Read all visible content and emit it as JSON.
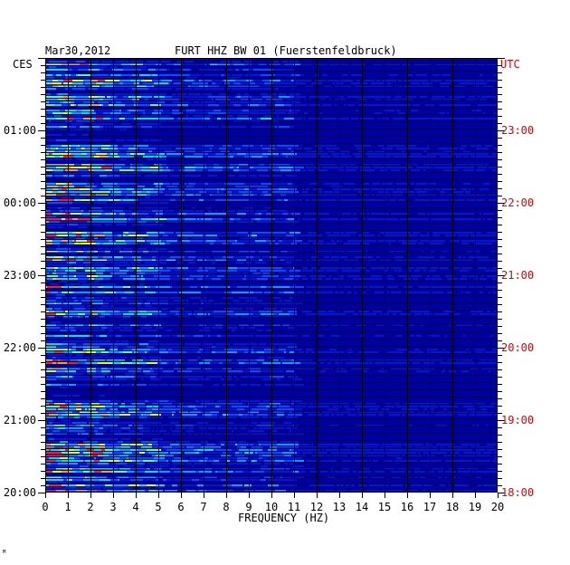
{
  "header": {
    "date": "Mar30,2012",
    "title": "FURT HHZ BW 01 (Fuerstenfeldbruck)",
    "left_zone": "CES",
    "right_zone": "UTC"
  },
  "footer": {
    "corner_mark": "ᴹ"
  },
  "colors": {
    "background": "#0000a0",
    "gridline": "#000000",
    "right_axis_text": "#e00000"
  },
  "chart_data": {
    "type": "heatmap",
    "title": "FURT HHZ BW 01 (Fuerstenfeldbruck)",
    "xlabel": "FREQUENCY (HZ)",
    "xlim": [
      0,
      20
    ],
    "x_ticks": [
      "0",
      "1",
      "2",
      "3",
      "4",
      "5",
      "6",
      "7",
      "8",
      "9",
      "10",
      "11",
      "12",
      "13",
      "14",
      "15",
      "16",
      "17",
      "18",
      "19",
      "20"
    ],
    "y_ticks_left": [
      "01:00",
      "00:00",
      "23:00",
      "22:00",
      "21:00",
      "20:00"
    ],
    "y_ticks_right": [
      "23:00",
      "22:00",
      "21:00",
      "20:00",
      "19:00",
      "18:00"
    ],
    "grid": true,
    "colormap": [
      "#0000a0",
      "#0018d0",
      "#0050ff",
      "#00a0ff",
      "#00e0e0",
      "#60ff80",
      "#e0ff00",
      "#ffa000",
      "#ff2000"
    ]
  }
}
